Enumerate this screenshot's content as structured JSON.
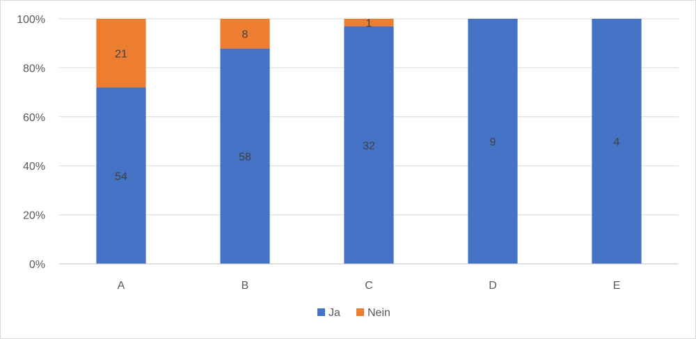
{
  "chart_data": {
    "type": "bar",
    "stacked": "percent",
    "categories": [
      "A",
      "B",
      "C",
      "D",
      "E"
    ],
    "series": [
      {
        "name": "Ja",
        "color": "#4472c4",
        "values": [
          54,
          58,
          32,
          9,
          4
        ]
      },
      {
        "name": "Nein",
        "color": "#ed7d31",
        "values": [
          21,
          8,
          1,
          0,
          0
        ]
      }
    ],
    "yticks": [
      "0%",
      "20%",
      "40%",
      "60%",
      "80%",
      "100%"
    ],
    "ylim": [
      0,
      100
    ],
    "grid": true,
    "legend_position": "bottom"
  }
}
